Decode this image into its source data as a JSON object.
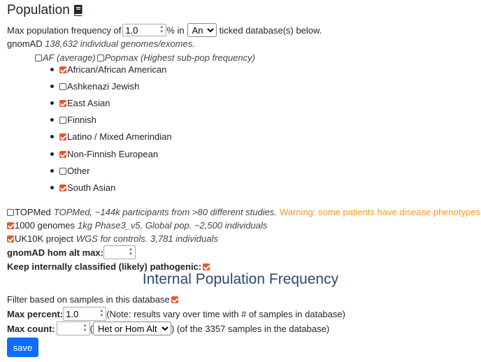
{
  "population": {
    "title": "Population",
    "max_freq_prefix": "Max population frequency of",
    "max_freq_value": "1.0",
    "pct_in": "% in",
    "any_select": "Any",
    "ticked_suffix": "ticked database(s) below.",
    "gnomad_label": "gnomAD",
    "gnomad_desc": "138,632 individual genomes/exomes.",
    "af_label": "AF (average)",
    "popmax_label": "Popmax (Highest sub-pop frequency)",
    "subpops": [
      {
        "label": "African/African American",
        "checked": true
      },
      {
        "label": "Ashkenazi Jewish",
        "checked": false
      },
      {
        "label": "East Asian",
        "checked": true
      },
      {
        "label": "Finnish",
        "checked": false
      },
      {
        "label": "Latino / Mixed Amerindian",
        "checked": true
      },
      {
        "label": "Non-Finnish European",
        "checked": true
      },
      {
        "label": "Other",
        "checked": false
      },
      {
        "label": "South Asian",
        "checked": true
      }
    ],
    "topmed_label": "TOPMed",
    "topmed_desc": "TOPMed, ~144k participants from >80 different studies.",
    "topmed_warning": "Warning: some patients have disease phenotypes",
    "kg_label": "1000 genomes",
    "kg_desc": "1kg Phase3_v5. Global pop. ~2,500 individuals",
    "uk10k_label": "UK10K project",
    "uk10k_desc": "WGS for controls. 3,781 individuals",
    "hom_alt_label": "gnomAD hom alt max:",
    "keep_pathogenic_label": "Keep internally classified (likely) pathogenic:"
  },
  "internal": {
    "title": "Internal Population Frequency",
    "filter_label": "Filter based on samples in this database",
    "max_percent_label": "Max percent:",
    "max_percent_value": "1.0",
    "max_percent_note": "(Note: results vary over time with # of samples in database)",
    "max_count_label": "Max count:",
    "paren_open": "(",
    "zygosity_select": "Het or Hom Alt",
    "samples_note": ") (of the 3357 samples in the database)"
  },
  "save_label": "save",
  "colors": {
    "checkbox": "#e8572a",
    "warning": "#ef9a20",
    "primary": "#0d6efd",
    "heading": "#2b4a6a"
  }
}
